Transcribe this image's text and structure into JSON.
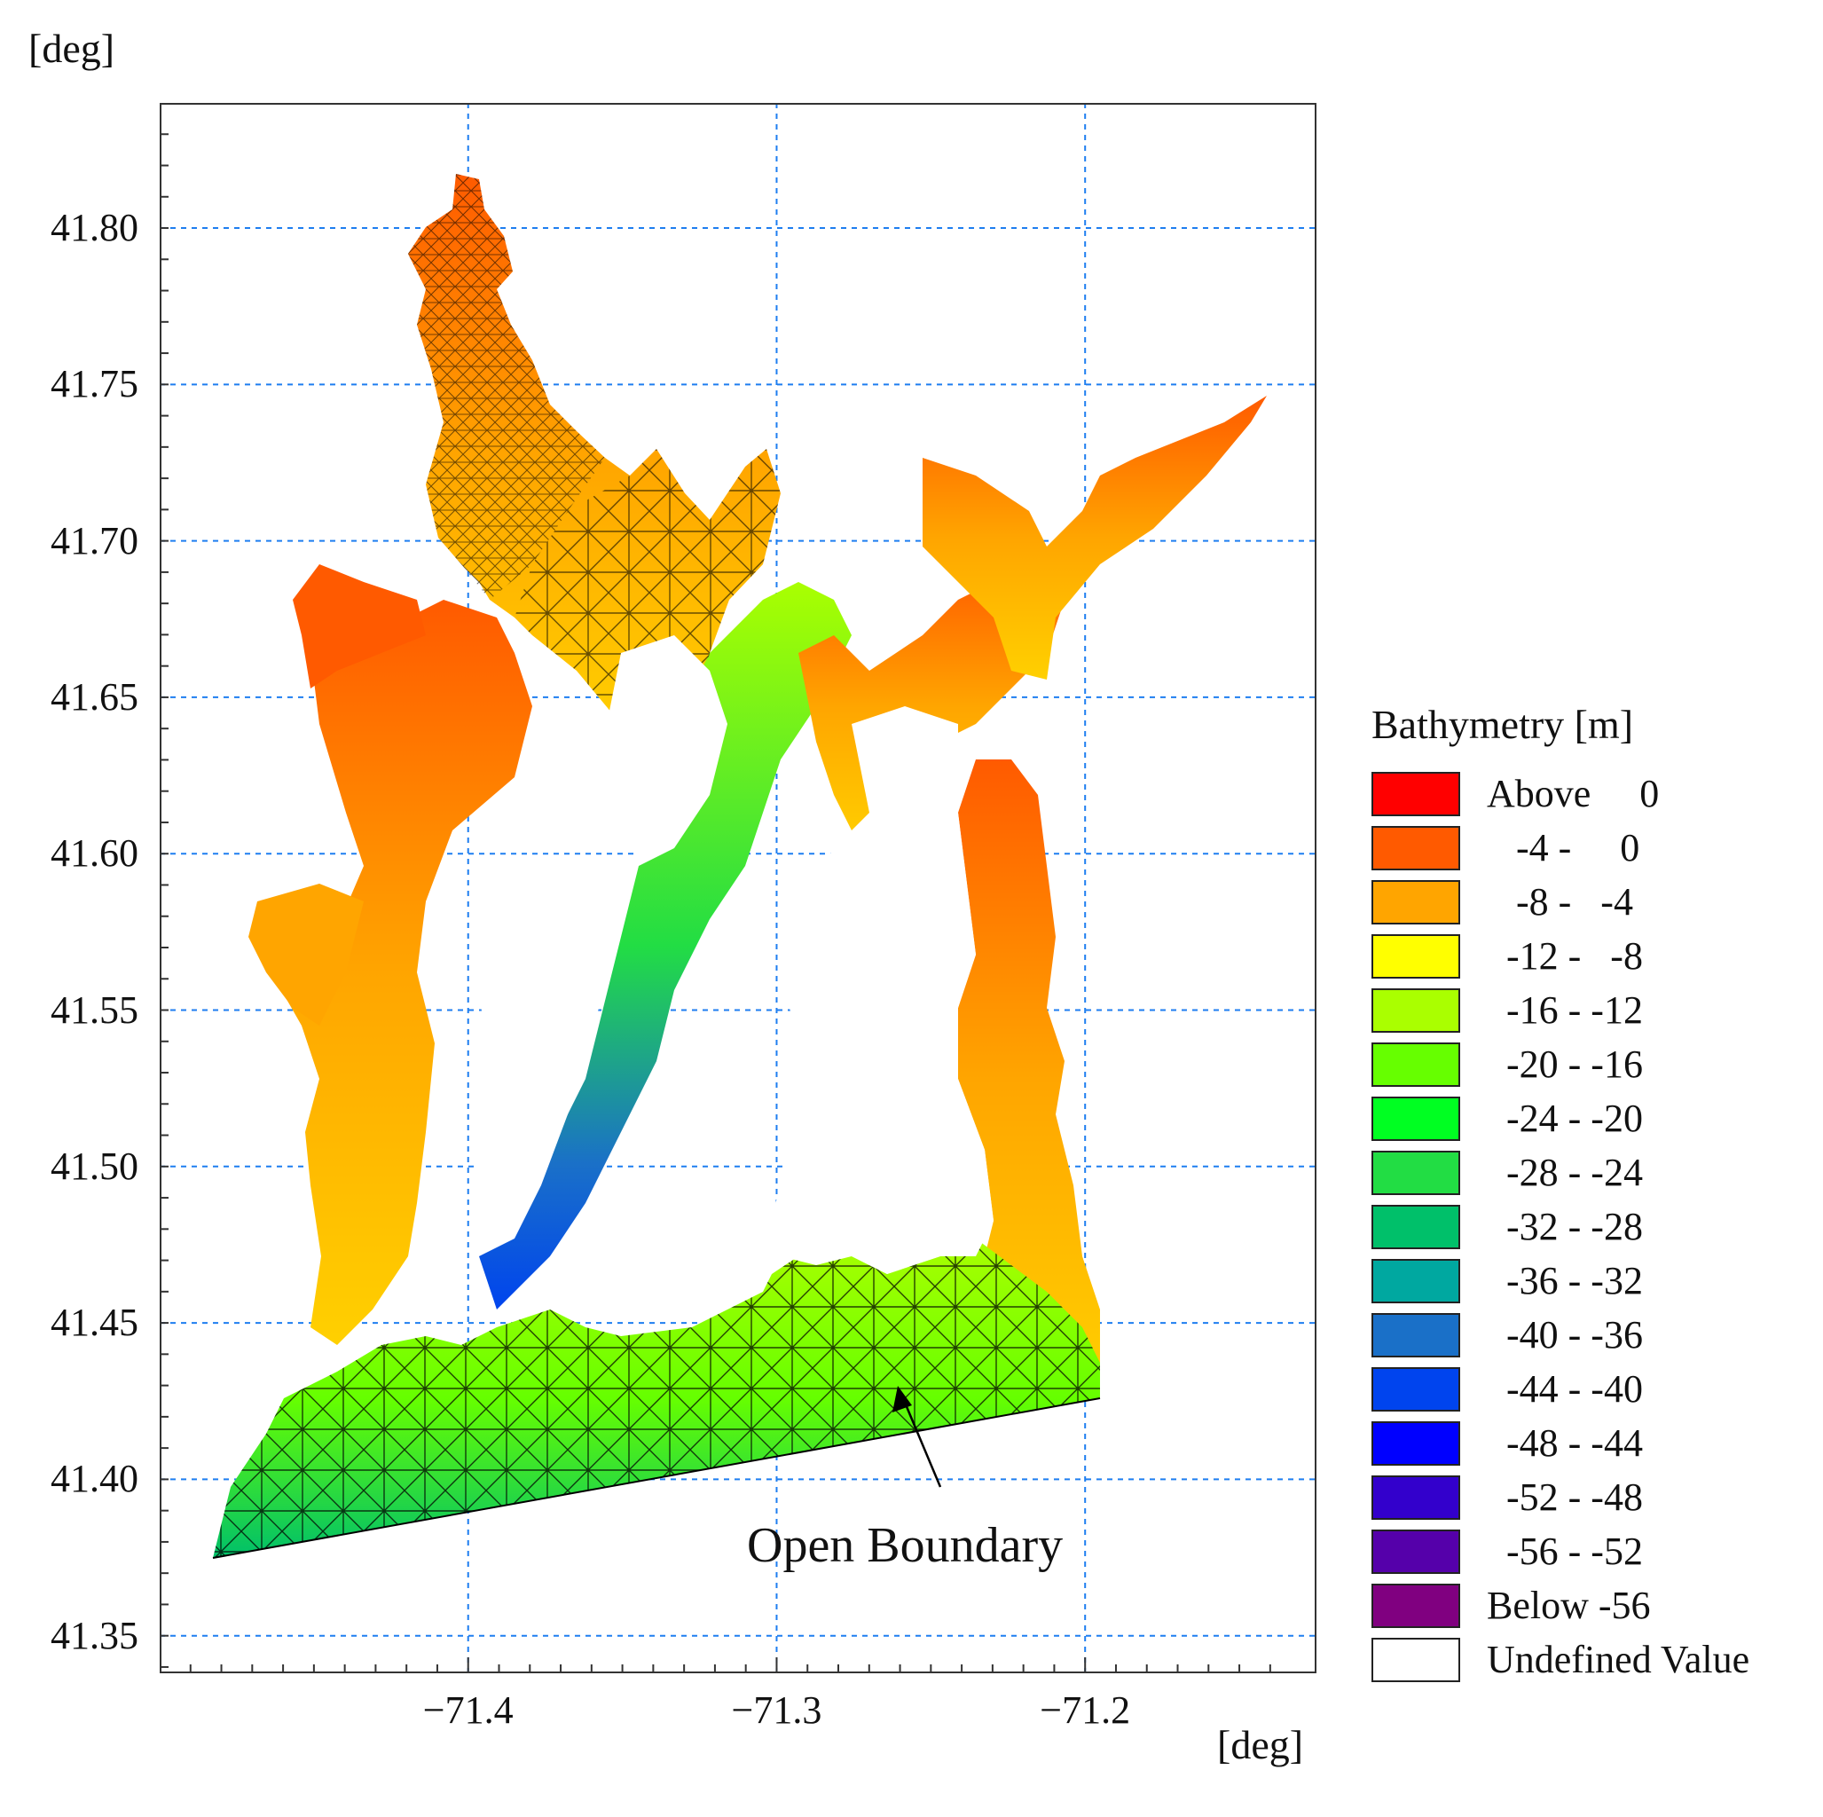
{
  "axes": {
    "x_unit": "[deg]",
    "y_unit": "[deg]",
    "x_ticks": [
      "−71.4",
      "−71.3",
      "−71.2"
    ],
    "y_ticks": [
      "41.80",
      "41.75",
      "41.70",
      "41.65",
      "41.60",
      "41.55",
      "41.50",
      "41.45",
      "41.40",
      "41.35"
    ],
    "x_range": [
      -71.5,
      -71.125
    ],
    "y_range": [
      41.338,
      41.84
    ],
    "grid": true
  },
  "legend": {
    "title": "Bathymetry [m]",
    "placement": "right",
    "entries": [
      {
        "label": "Above     0",
        "color": "#ff0000"
      },
      {
        "label": "   -4 -     0",
        "color": "#ff5a00"
      },
      {
        "label": "   -8 -   -4",
        "color": "#ffa500"
      },
      {
        "label": "  -12 -   -8",
        "color": "#ffff00"
      },
      {
        "label": "  -16 - -12",
        "color": "#aaff00"
      },
      {
        "label": "  -20 - -16",
        "color": "#66ff00"
      },
      {
        "label": "  -24 - -20",
        "color": "#00ff22"
      },
      {
        "label": "  -28 - -24",
        "color": "#22dd44"
      },
      {
        "label": "  -32 - -28",
        "color": "#00c06a"
      },
      {
        "label": "  -36 - -32",
        "color": "#00a8a0"
      },
      {
        "label": "  -40 - -36",
        "color": "#1a70c8"
      },
      {
        "label": "  -44 - -40",
        "color": "#0044ee"
      },
      {
        "label": "  -48 - -44",
        "color": "#0000ff"
      },
      {
        "label": "  -52 - -48",
        "color": "#3300cc"
      },
      {
        "label": "  -56 - -52",
        "color": "#5500aa"
      },
      {
        "label": "Below -56",
        "color": "#800080"
      },
      {
        "label": "Undefined Value",
        "color": "#ffffff"
      }
    ]
  },
  "annotation": {
    "text": "Open Boundary"
  },
  "colors": {
    "grid": "#1e7ef0",
    "mesh": "#000000",
    "frame": "#333333"
  }
}
